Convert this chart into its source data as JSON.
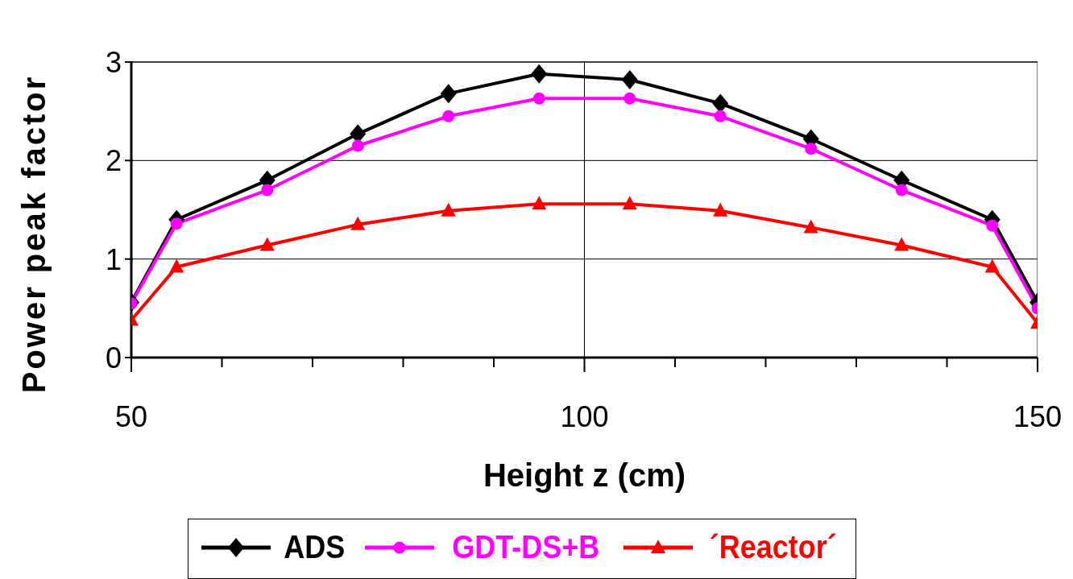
{
  "chart_data": {
    "type": "line",
    "xlabel": "Height z (cm)",
    "ylabel": "Power peak factor",
    "x": [
      50,
      55,
      65,
      75,
      85,
      95,
      105,
      115,
      125,
      135,
      145,
      150
    ],
    "series": [
      {
        "name": "ADS",
        "color": "#000000",
        "marker": "diamond",
        "values": [
          0.56,
          1.4,
          1.8,
          2.27,
          2.68,
          2.88,
          2.82,
          2.58,
          2.22,
          1.8,
          1.4,
          0.56
        ]
      },
      {
        "name": "GDT-DS+B",
        "color": "#ff00ff",
        "marker": "circle",
        "values": [
          0.55,
          1.36,
          1.7,
          2.15,
          2.45,
          2.63,
          2.63,
          2.45,
          2.12,
          1.7,
          1.34,
          0.5
        ]
      },
      {
        "name": "´Reactor´",
        "color": "#ff0000",
        "marker": "triangle",
        "values": [
          0.38,
          0.92,
          1.14,
          1.35,
          1.49,
          1.56,
          1.56,
          1.49,
          1.32,
          1.14,
          0.92,
          0.35
        ]
      }
    ],
    "xlim": [
      50,
      150
    ],
    "xticks": [
      50,
      {
        "value": 60,
        "label": null
      },
      {
        "value": 70,
        "label": null
      },
      {
        "value": 80,
        "label": null
      },
      {
        "value": 90,
        "label": null
      },
      100,
      {
        "value": 110,
        "label": null
      },
      {
        "value": 120,
        "label": null
      },
      {
        "value": 130,
        "label": null
      },
      {
        "value": 140,
        "label": null
      },
      150
    ],
    "ylim": [
      0,
      3
    ],
    "yticks": [
      0,
      1,
      2,
      3
    ],
    "grid": true,
    "legend": "bottom",
    "line_style": "solid"
  }
}
